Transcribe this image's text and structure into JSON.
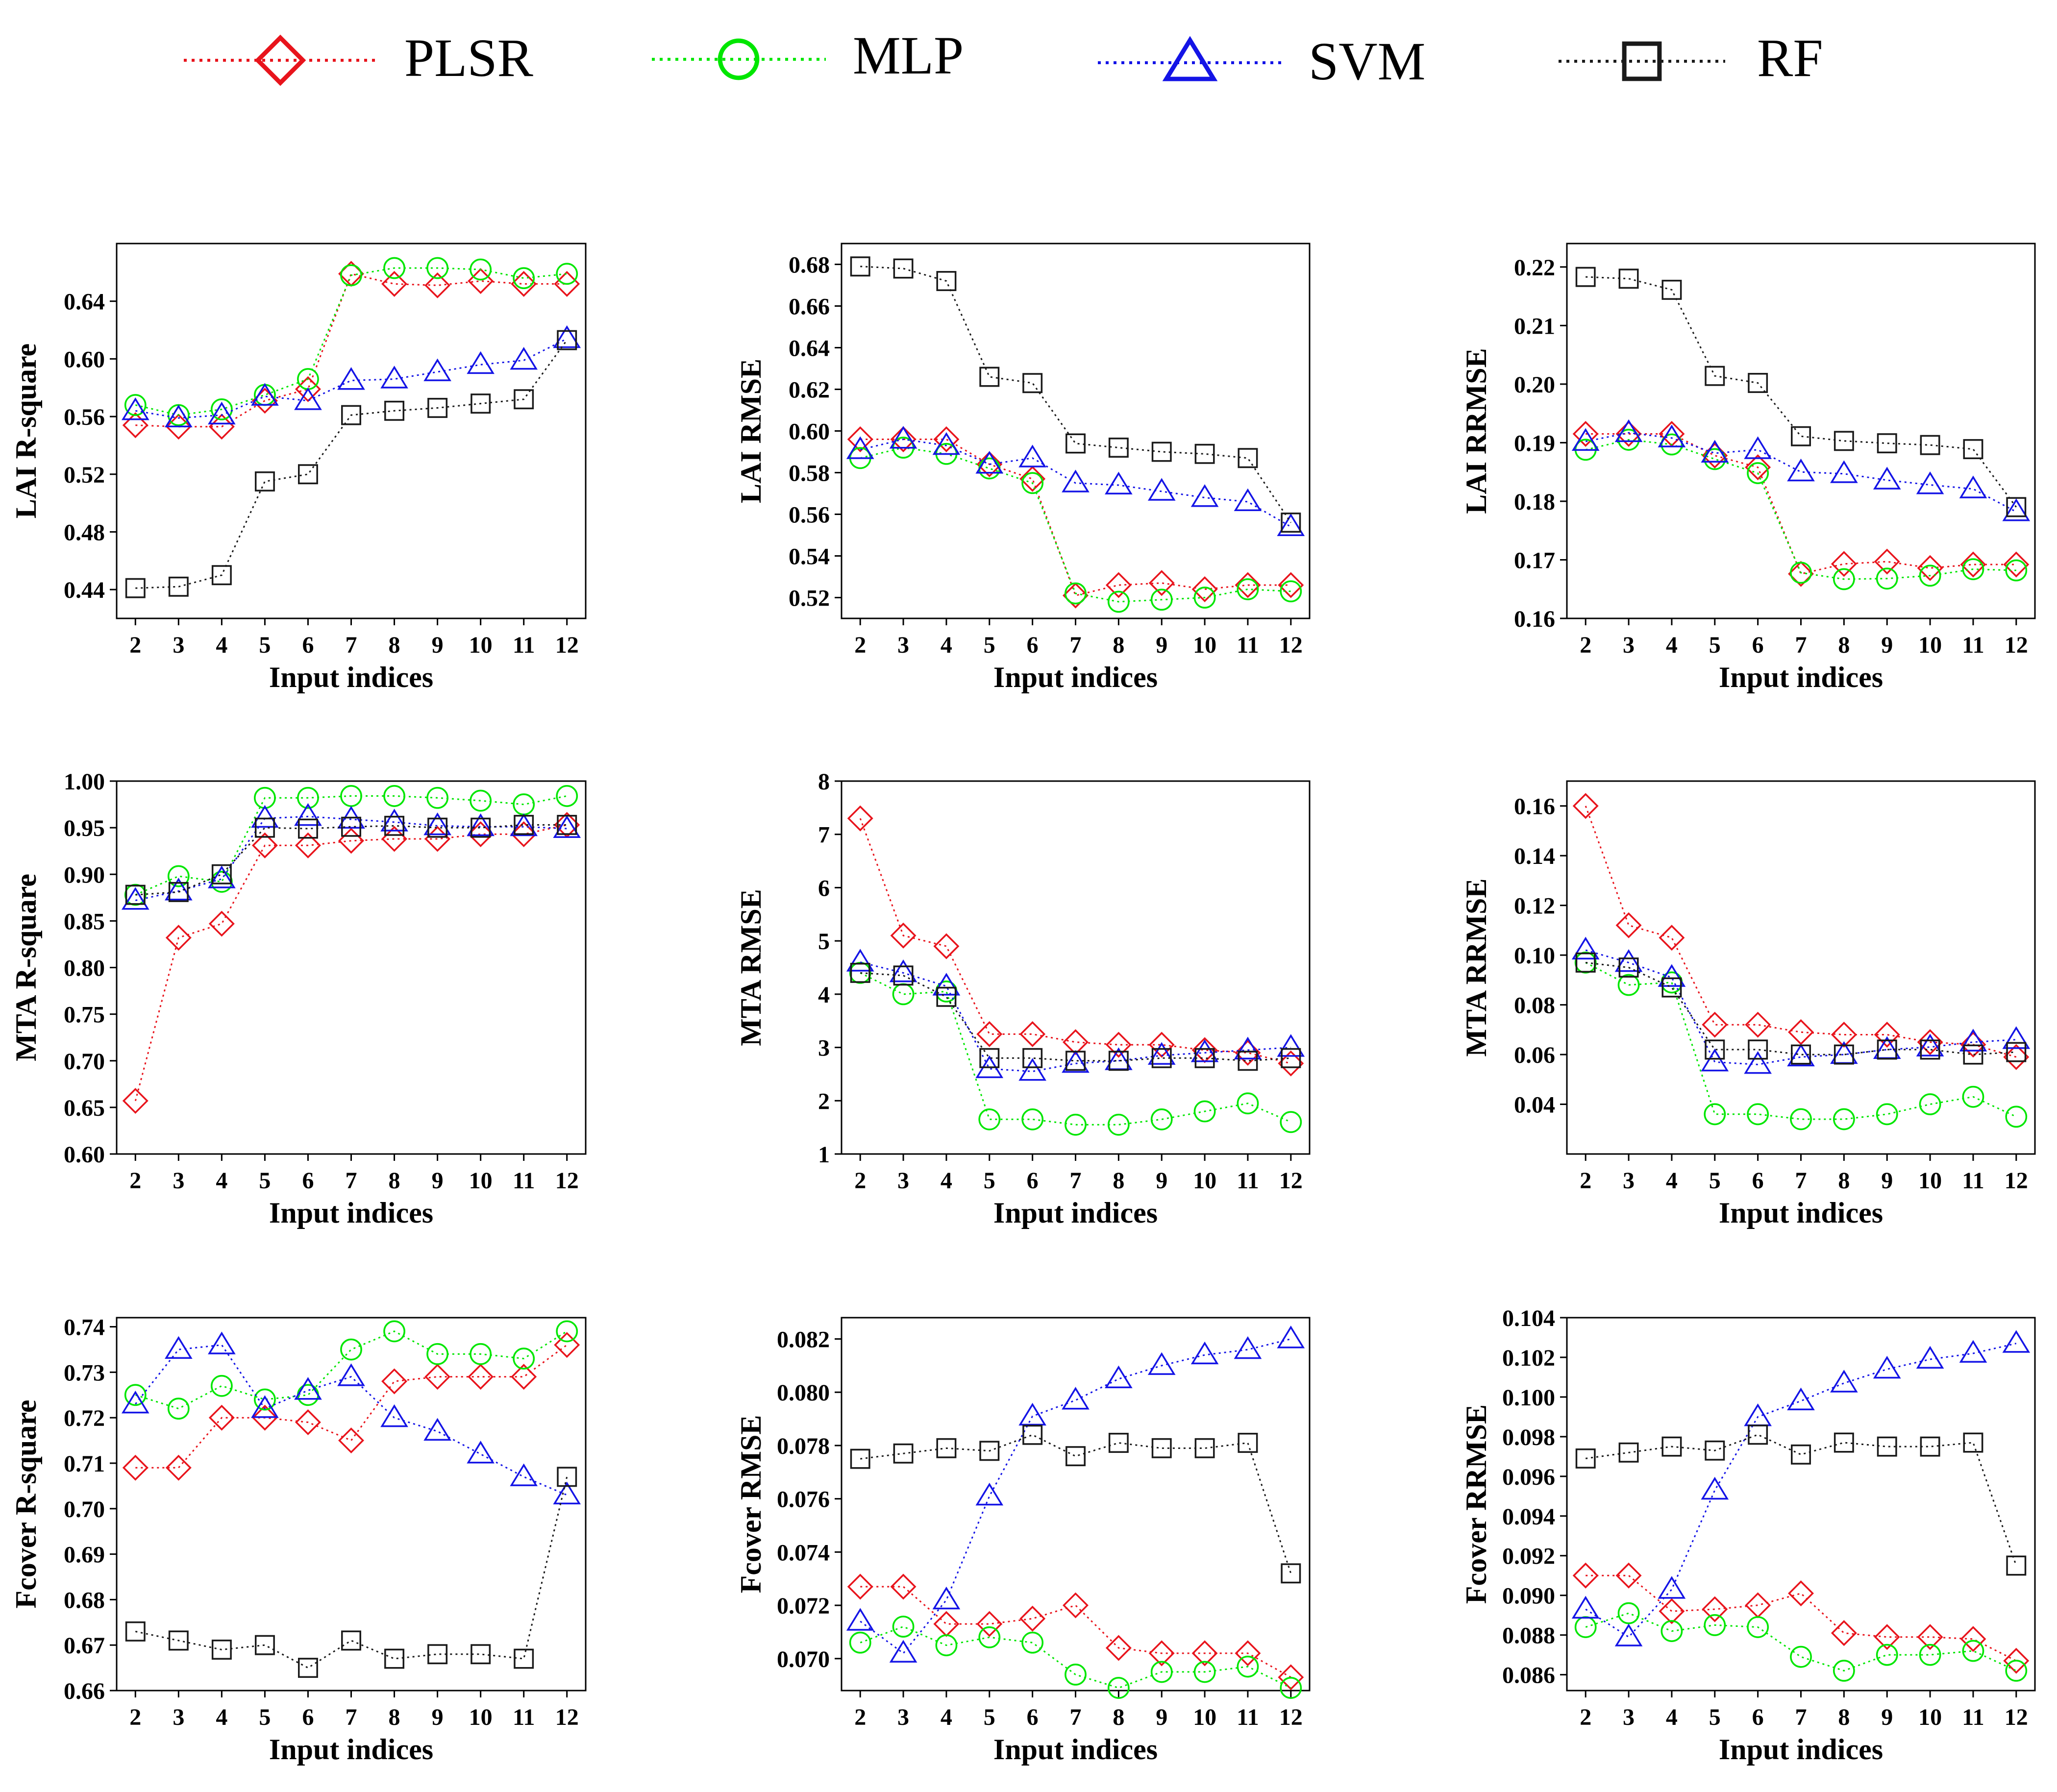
{
  "legend": {
    "items": [
      {
        "name": "PLSR",
        "marker": "diamond",
        "color": "#e8141c"
      },
      {
        "name": "MLP",
        "marker": "circle",
        "color": "#00e600"
      },
      {
        "name": "SVM",
        "marker": "triangle",
        "color": "#1414e6"
      },
      {
        "name": "RF",
        "marker": "square",
        "color": "#1a1a1a"
      }
    ]
  },
  "chart_data": [
    {
      "type": "line",
      "xlabel": "Input indices",
      "ylabel": "LAI  R-square",
      "x": [
        2,
        3,
        4,
        5,
        6,
        7,
        8,
        9,
        10,
        11,
        12
      ],
      "ylim": [
        0.42,
        0.68
      ],
      "yticks": [
        0.44,
        0.48,
        0.52,
        0.56,
        0.6,
        0.64
      ],
      "decimals": 2,
      "series": [
        {
          "name": "PLSR",
          "values": [
            0.554,
            0.553,
            0.553,
            0.571,
            0.579,
            0.659,
            0.652,
            0.651,
            0.654,
            0.652,
            0.652
          ]
        },
        {
          "name": "MLP",
          "values": [
            0.568,
            0.561,
            0.565,
            0.575,
            0.586,
            0.658,
            0.663,
            0.663,
            0.662,
            0.656,
            0.659
          ]
        },
        {
          "name": "SVM",
          "values": [
            0.564,
            0.559,
            0.561,
            0.574,
            0.571,
            0.585,
            0.586,
            0.591,
            0.596,
            0.599,
            0.614
          ]
        },
        {
          "name": "RF",
          "values": [
            0.441,
            0.442,
            0.45,
            0.515,
            0.52,
            0.561,
            0.564,
            0.566,
            0.569,
            0.572,
            0.613
          ]
        }
      ]
    },
    {
      "type": "line",
      "xlabel": "Input indices",
      "ylabel": "LAI  RMSE",
      "x": [
        2,
        3,
        4,
        5,
        6,
        7,
        8,
        9,
        10,
        11,
        12
      ],
      "ylim": [
        0.51,
        0.69
      ],
      "yticks": [
        0.52,
        0.54,
        0.56,
        0.58,
        0.6,
        0.62,
        0.64,
        0.66,
        0.68
      ],
      "decimals": 2,
      "series": [
        {
          "name": "PLSR",
          "values": [
            0.596,
            0.596,
            0.596,
            0.584,
            0.577,
            0.521,
            0.526,
            0.527,
            0.524,
            0.526,
            0.526
          ]
        },
        {
          "name": "MLP",
          "values": [
            0.587,
            0.592,
            0.589,
            0.582,
            0.575,
            0.522,
            0.518,
            0.519,
            0.52,
            0.524,
            0.523
          ]
        },
        {
          "name": "SVM",
          "values": [
            0.591,
            0.596,
            0.593,
            0.584,
            0.587,
            0.575,
            0.574,
            0.571,
            0.568,
            0.566,
            0.554
          ]
        },
        {
          "name": "RF",
          "values": [
            0.679,
            0.678,
            0.672,
            0.626,
            0.623,
            0.594,
            0.592,
            0.59,
            0.589,
            0.587,
            0.556
          ]
        }
      ]
    },
    {
      "type": "line",
      "xlabel": "Input indices",
      "ylabel": "LAI  RRMSE",
      "x": [
        2,
        3,
        4,
        5,
        6,
        7,
        8,
        9,
        10,
        11,
        12
      ],
      "ylim": [
        0.16,
        0.224
      ],
      "yticks": [
        0.16,
        0.17,
        0.18,
        0.19,
        0.2,
        0.21,
        0.22
      ],
      "decimals": 2,
      "series": [
        {
          "name": "PLSR",
          "values": [
            0.1915,
            0.1915,
            0.1915,
            0.1878,
            0.1858,
            0.1676,
            0.1693,
            0.1697,
            0.1686,
            0.1692,
            0.1692
          ]
        },
        {
          "name": "MLP",
          "values": [
            0.1888,
            0.1905,
            0.1897,
            0.1872,
            0.1848,
            0.1678,
            0.1667,
            0.1668,
            0.1673,
            0.1684,
            0.1682
          ]
        },
        {
          "name": "SVM",
          "values": [
            0.1902,
            0.1917,
            0.1908,
            0.1882,
            0.1888,
            0.185,
            0.1847,
            0.1836,
            0.1828,
            0.1821,
            0.1782
          ]
        },
        {
          "name": "RF",
          "values": [
            0.2183,
            0.218,
            0.2161,
            0.2014,
            0.2002,
            0.1911,
            0.1903,
            0.1899,
            0.1896,
            0.1889,
            0.179
          ]
        }
      ]
    },
    {
      "type": "line",
      "xlabel": "Input indices",
      "ylabel": "MTA  R-square",
      "x": [
        2,
        3,
        4,
        5,
        6,
        7,
        8,
        9,
        10,
        11,
        12
      ],
      "ylim": [
        0.6,
        1.0
      ],
      "yticks": [
        0.6,
        0.65,
        0.7,
        0.75,
        0.8,
        0.85,
        0.9,
        0.95,
        1.0
      ],
      "decimals": 2,
      "series": [
        {
          "name": "PLSR",
          "values": [
            0.657,
            0.832,
            0.847,
            0.931,
            0.931,
            0.936,
            0.938,
            0.938,
            0.943,
            0.943,
            0.953
          ]
        },
        {
          "name": "MLP",
          "values": [
            0.878,
            0.898,
            0.892,
            0.982,
            0.982,
            0.984,
            0.984,
            0.982,
            0.979,
            0.975,
            0.984
          ]
        },
        {
          "name": "SVM",
          "values": [
            0.872,
            0.882,
            0.895,
            0.96,
            0.962,
            0.959,
            0.956,
            0.952,
            0.951,
            0.951,
            0.949
          ]
        },
        {
          "name": "RF",
          "values": [
            0.878,
            0.881,
            0.9,
            0.95,
            0.949,
            0.951,
            0.952,
            0.95,
            0.95,
            0.953,
            0.953
          ]
        }
      ]
    },
    {
      "type": "line",
      "xlabel": "Input indices",
      "ylabel": "MTA  RMSE",
      "x": [
        2,
        3,
        4,
        5,
        6,
        7,
        8,
        9,
        10,
        11,
        12
      ],
      "ylim": [
        1,
        8
      ],
      "yticks": [
        1,
        2,
        3,
        4,
        5,
        6,
        7,
        8
      ],
      "decimals": 0,
      "series": [
        {
          "name": "PLSR",
          "values": [
            7.3,
            5.1,
            4.9,
            3.25,
            3.25,
            3.1,
            3.05,
            3.05,
            2.95,
            2.9,
            2.7
          ]
        },
        {
          "name": "MLP",
          "values": [
            4.4,
            4.0,
            4.05,
            1.65,
            1.65,
            1.55,
            1.55,
            1.65,
            1.8,
            1.95,
            1.6
          ]
        },
        {
          "name": "SVM",
          "values": [
            4.6,
            4.4,
            4.15,
            2.6,
            2.55,
            2.7,
            2.75,
            2.85,
            2.9,
            2.95,
            3.0
          ]
        },
        {
          "name": "RF",
          "values": [
            4.4,
            4.35,
            3.95,
            2.8,
            2.8,
            2.75,
            2.75,
            2.8,
            2.8,
            2.75,
            2.8
          ]
        }
      ]
    },
    {
      "type": "line",
      "xlabel": "Input indices",
      "ylabel": "MTA  RRMSE",
      "x": [
        2,
        3,
        4,
        5,
        6,
        7,
        8,
        9,
        10,
        11,
        12
      ],
      "ylim": [
        0.02,
        0.17
      ],
      "yticks": [
        0.04,
        0.06,
        0.08,
        0.1,
        0.12,
        0.14,
        0.16
      ],
      "decimals": 2,
      "series": [
        {
          "name": "PLSR",
          "values": [
            0.16,
            0.112,
            0.107,
            0.072,
            0.072,
            0.069,
            0.068,
            0.068,
            0.065,
            0.064,
            0.059
          ]
        },
        {
          "name": "MLP",
          "values": [
            0.097,
            0.088,
            0.089,
            0.036,
            0.036,
            0.034,
            0.034,
            0.036,
            0.04,
            0.043,
            0.035
          ]
        },
        {
          "name": "SVM",
          "values": [
            0.102,
            0.097,
            0.091,
            0.057,
            0.056,
            0.059,
            0.06,
            0.062,
            0.063,
            0.065,
            0.066
          ]
        },
        {
          "name": "RF",
          "values": [
            0.097,
            0.095,
            0.087,
            0.062,
            0.062,
            0.06,
            0.06,
            0.062,
            0.062,
            0.06,
            0.061
          ]
        }
      ]
    },
    {
      "type": "line",
      "xlabel": "Input indices",
      "ylabel": "Fcover  R-square",
      "x": [
        2,
        3,
        4,
        5,
        6,
        7,
        8,
        9,
        10,
        11,
        12
      ],
      "ylim": [
        0.66,
        0.742
      ],
      "yticks": [
        0.66,
        0.67,
        0.68,
        0.69,
        0.7,
        0.71,
        0.72,
        0.73,
        0.74
      ],
      "decimals": 2,
      "series": [
        {
          "name": "PLSR",
          "values": [
            0.709,
            0.709,
            0.72,
            0.72,
            0.719,
            0.715,
            0.728,
            0.729,
            0.729,
            0.729,
            0.736
          ]
        },
        {
          "name": "MLP",
          "values": [
            0.725,
            0.722,
            0.727,
            0.724,
            0.725,
            0.735,
            0.739,
            0.734,
            0.734,
            0.733,
            0.739
          ]
        },
        {
          "name": "SVM",
          "values": [
            0.723,
            0.735,
            0.736,
            0.722,
            0.726,
            0.729,
            0.72,
            0.717,
            0.712,
            0.707,
            0.703
          ]
        },
        {
          "name": "RF",
          "values": [
            0.673,
            0.671,
            0.669,
            0.67,
            0.665,
            0.671,
            0.667,
            0.668,
            0.668,
            0.667,
            0.707
          ]
        }
      ]
    },
    {
      "type": "line",
      "xlabel": "Input indices",
      "ylabel": "Fcover  RMSE",
      "x": [
        2,
        3,
        4,
        5,
        6,
        7,
        8,
        9,
        10,
        11,
        12
      ],
      "ylim": [
        0.0688,
        0.0828
      ],
      "yticks": [
        0.07,
        0.072,
        0.074,
        0.076,
        0.078,
        0.08,
        0.082
      ],
      "decimals": 3,
      "series": [
        {
          "name": "PLSR",
          "values": [
            0.0727,
            0.0727,
            0.0713,
            0.0713,
            0.0715,
            0.072,
            0.0704,
            0.0702,
            0.0702,
            0.0702,
            0.0693
          ]
        },
        {
          "name": "MLP",
          "values": [
            0.0706,
            0.0712,
            0.0705,
            0.0708,
            0.0706,
            0.0694,
            0.0689,
            0.0695,
            0.0695,
            0.0697,
            0.0689
          ]
        },
        {
          "name": "SVM",
          "values": [
            0.0714,
            0.0702,
            0.0722,
            0.0761,
            0.0791,
            0.0797,
            0.0805,
            0.081,
            0.0814,
            0.0816,
            0.082
          ]
        },
        {
          "name": "RF",
          "values": [
            0.0775,
            0.0777,
            0.0779,
            0.0778,
            0.0784,
            0.0776,
            0.0781,
            0.0779,
            0.0779,
            0.0781,
            0.0732
          ]
        }
      ]
    },
    {
      "type": "line",
      "xlabel": "Input indices",
      "ylabel": "Fcover  RRMSE",
      "x": [
        2,
        3,
        4,
        5,
        6,
        7,
        8,
        9,
        10,
        11,
        12
      ],
      "ylim": [
        0.0852,
        0.104
      ],
      "yticks": [
        0.086,
        0.088,
        0.09,
        0.092,
        0.094,
        0.096,
        0.098,
        0.1,
        0.102,
        0.104
      ],
      "decimals": 3,
      "series": [
        {
          "name": "PLSR",
          "values": [
            0.091,
            0.091,
            0.0892,
            0.0893,
            0.0895,
            0.0901,
            0.0881,
            0.0879,
            0.0879,
            0.0878,
            0.0867
          ]
        },
        {
          "name": "MLP",
          "values": [
            0.0884,
            0.0891,
            0.0882,
            0.0885,
            0.0884,
            0.0869,
            0.0862,
            0.087,
            0.087,
            0.0872,
            0.0862
          ]
        },
        {
          "name": "SVM",
          "values": [
            0.0893,
            0.0879,
            0.0903,
            0.0953,
            0.099,
            0.0998,
            0.1007,
            0.1014,
            0.1019,
            0.1022,
            0.1027
          ]
        },
        {
          "name": "RF",
          "values": [
            0.0969,
            0.0972,
            0.0975,
            0.0973,
            0.0981,
            0.0971,
            0.0977,
            0.0975,
            0.0975,
            0.0977,
            0.0915
          ]
        }
      ]
    }
  ]
}
